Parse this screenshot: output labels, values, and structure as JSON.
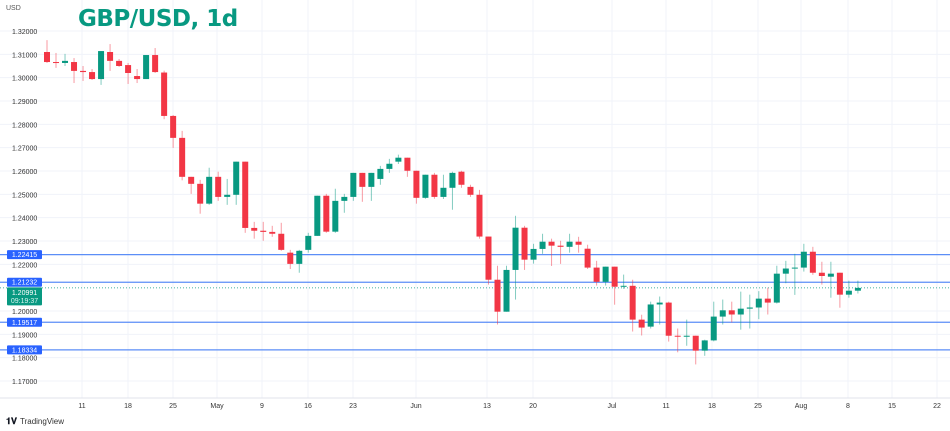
{
  "title": "GBP/USD, 1d",
  "currency": "USD",
  "brand": "TradingView",
  "colors": {
    "up": "#089981",
    "down": "#f23645",
    "level": "#2962ff",
    "title": "#089981"
  },
  "chart_data": {
    "type": "candlestick",
    "title": "GBP/USD, 1d",
    "ylim": [
      1.165,
      1.325
    ],
    "yticks": [
      "1.32000",
      "1.31000",
      "1.30000",
      "1.29000",
      "1.28000",
      "1.27000",
      "1.26000",
      "1.25000",
      "1.24000",
      "1.23000",
      "1.22000",
      "1.20000",
      "1.19000",
      "1.18000",
      "1.17000"
    ],
    "xticks": [
      "11",
      "18",
      "25",
      "May",
      "9",
      "16",
      "23",
      "Jun",
      "13",
      "20",
      "Jul",
      "11",
      "18",
      "25",
      "Aug",
      "8",
      "15",
      "22"
    ],
    "levels": [
      "1.22415",
      "1.21232",
      "1.19517",
      "1.18334"
    ],
    "last_price": "1.20991",
    "countdown": "09:19:37",
    "ohlc_order": [
      "open",
      "high",
      "low",
      "close"
    ],
    "candles": [
      [
        1.311,
        1.3161,
        1.3063,
        1.3067
      ],
      [
        1.3067,
        1.3106,
        1.3042,
        1.3063
      ],
      [
        1.3063,
        1.3102,
        1.305,
        1.3072
      ],
      [
        1.3067,
        1.3084,
        1.2977,
        1.3029
      ],
      [
        1.3029,
        1.305,
        1.2986,
        1.3024
      ],
      [
        1.3024,
        1.3037,
        1.299,
        1.2994
      ],
      [
        1.2994,
        1.3114,
        1.2969,
        1.3114
      ],
      [
        1.311,
        1.3144,
        1.3029,
        1.3072
      ],
      [
        1.3072,
        1.308,
        1.3046,
        1.305
      ],
      [
        1.3054,
        1.3063,
        1.2973,
        1.302
      ],
      [
        1.3007,
        1.3037,
        1.2977,
        1.2994
      ],
      [
        1.2994,
        1.3097,
        1.2994,
        1.3097
      ],
      [
        1.3097,
        1.3127,
        1.302,
        1.3024
      ],
      [
        1.3022,
        1.303,
        1.2822,
        1.2836
      ],
      [
        1.2836,
        1.284,
        1.2699,
        1.2742
      ],
      [
        1.2742,
        1.2772,
        1.256,
        1.2575
      ],
      [
        1.2575,
        1.2575,
        1.2502,
        1.2545
      ],
      [
        1.2545,
        1.2562,
        1.2417,
        1.246
      ],
      [
        1.246,
        1.2614,
        1.2455,
        1.2575
      ],
      [
        1.2575,
        1.2597,
        1.2472,
        1.2489
      ],
      [
        1.2489,
        1.2566,
        1.2455,
        1.2498
      ],
      [
        1.2498,
        1.264,
        1.2455,
        1.264
      ],
      [
        1.264,
        1.264,
        1.2335,
        1.2356
      ],
      [
        1.2356,
        1.2382,
        1.231,
        1.2344
      ],
      [
        1.2344,
        1.2382,
        1.2301,
        1.2339
      ],
      [
        1.2339,
        1.2365,
        1.2318,
        1.2331
      ],
      [
        1.2331,
        1.2378,
        1.2258,
        1.2262
      ],
      [
        1.225,
        1.2262,
        1.218,
        1.2202
      ],
      [
        1.2202,
        1.2262,
        1.2164,
        1.2258
      ],
      [
        1.2262,
        1.2335,
        1.225,
        1.2322
      ],
      [
        1.2322,
        1.2494,
        1.2322,
        1.2494
      ],
      [
        1.2494,
        1.2502,
        1.2335,
        1.234
      ],
      [
        1.234,
        1.2524,
        1.2335,
        1.2472
      ],
      [
        1.2472,
        1.2502,
        1.2421,
        1.2489
      ],
      [
        1.2489,
        1.2592,
        1.2472,
        1.2592
      ],
      [
        1.2592,
        1.2592,
        1.2468,
        1.2532
      ],
      [
        1.2532,
        1.2592,
        1.2472,
        1.2592
      ],
      [
        1.2566,
        1.2622,
        1.2541,
        1.2609
      ],
      [
        1.2609,
        1.2652,
        1.2592,
        1.2631
      ],
      [
        1.264,
        1.267,
        1.263,
        1.2657
      ],
      [
        1.2657,
        1.2657,
        1.2575,
        1.2601
      ],
      [
        1.2601,
        1.2601,
        1.246,
        1.2485
      ],
      [
        1.2485,
        1.2584,
        1.2481,
        1.2584
      ],
      [
        1.2584,
        1.2592,
        1.2481,
        1.2489
      ],
      [
        1.2489,
        1.2584,
        1.248,
        1.2528
      ],
      [
        1.2528,
        1.2597,
        1.2434,
        1.2592
      ],
      [
        1.2597,
        1.2601,
        1.2528,
        1.2541
      ],
      [
        1.2532,
        1.2541,
        1.2489,
        1.2498
      ],
      [
        1.2498,
        1.2519,
        1.231,
        1.2319
      ],
      [
        1.2319,
        1.2319,
        1.2113,
        1.2134
      ],
      [
        1.2134,
        1.2194,
        1.1942,
        1.1997
      ],
      [
        1.1997,
        1.2194,
        1.1997,
        1.2176
      ],
      [
        1.2176,
        1.2408,
        1.2049,
        1.2357
      ],
      [
        1.2357,
        1.2365,
        1.2176,
        1.222
      ],
      [
        1.222,
        1.2288,
        1.2203,
        1.2266
      ],
      [
        1.2266,
        1.2331,
        1.2245,
        1.2297
      ],
      [
        1.2297,
        1.231,
        1.2193,
        1.228
      ],
      [
        1.228,
        1.2301,
        1.2202,
        1.2275
      ],
      [
        1.2275,
        1.2331,
        1.225,
        1.2297
      ],
      [
        1.2297,
        1.2318,
        1.225,
        1.2284
      ],
      [
        1.2267,
        1.2284,
        1.218,
        1.2186
      ],
      [
        1.2186,
        1.2215,
        1.2109,
        1.2125
      ],
      [
        1.2125,
        1.219,
        1.2109,
        1.219
      ],
      [
        1.219,
        1.219,
        1.2027,
        1.2104
      ],
      [
        1.2104,
        1.2156,
        1.2095,
        1.2108
      ],
      [
        1.2108,
        1.2134,
        1.1912,
        1.1963
      ],
      [
        1.1963,
        1.1984,
        1.1895,
        1.1929
      ],
      [
        1.1933,
        1.204,
        1.1925,
        1.2028
      ],
      [
        1.2028,
        1.2062,
        1.1942,
        1.2036
      ],
      [
        1.2036,
        1.204,
        1.1869,
        1.1894
      ],
      [
        1.1894,
        1.1925,
        1.1823,
        1.189
      ],
      [
        1.189,
        1.1963,
        1.1851,
        1.1894
      ],
      [
        1.1894,
        1.1894,
        1.1771,
        1.183
      ],
      [
        1.183,
        1.1877,
        1.1808,
        1.1874
      ],
      [
        1.1874,
        1.204,
        1.187,
        1.1976
      ],
      [
        1.1976,
        1.2049,
        1.1942,
        1.2003
      ],
      [
        1.2003,
        1.204,
        1.1951,
        1.1985
      ],
      [
        1.1985,
        1.2083,
        1.192,
        1.201
      ],
      [
        1.201,
        1.207,
        1.1925,
        1.2015
      ],
      [
        1.2015,
        1.2085,
        1.1965,
        1.2053
      ],
      [
        1.2053,
        1.21,
        1.1985,
        1.2036
      ],
      [
        1.2036,
        1.2194,
        1.2032,
        1.216
      ],
      [
        1.216,
        1.2215,
        1.2119,
        1.2182
      ],
      [
        1.2182,
        1.2245,
        1.2069,
        1.2186
      ],
      [
        1.2186,
        1.2288,
        1.2169,
        1.2254
      ],
      [
        1.2254,
        1.2275,
        1.2155,
        1.2164
      ],
      [
        1.2164,
        1.2211,
        1.2113,
        1.215
      ],
      [
        1.2147,
        1.2211,
        1.2057,
        1.216
      ],
      [
        1.2164,
        1.2164,
        1.2014,
        1.207
      ],
      [
        1.207,
        1.213,
        1.2057,
        1.2087
      ],
      [
        1.2087,
        1.213,
        1.2075,
        1.2099
      ]
    ]
  }
}
